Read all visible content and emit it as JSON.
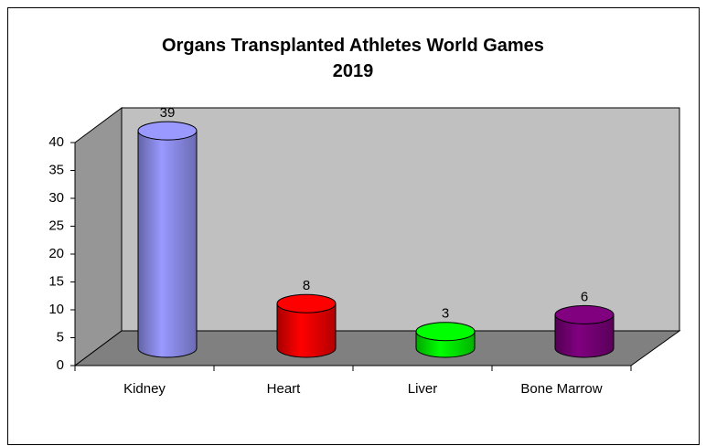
{
  "chart_data": {
    "type": "bar3d",
    "title": "Organs Transplanted Athletes World Games 2019",
    "categories": [
      "Kidney",
      "Heart",
      "Liver",
      "Bone Marrow"
    ],
    "values": [
      39,
      8,
      3,
      6
    ],
    "colors": [
      "#9999ff",
      "#ff0000",
      "#00ff00",
      "#800080"
    ],
    "ylim": [
      0,
      40
    ],
    "yticks": [
      0,
      5,
      10,
      15,
      20,
      25,
      30,
      35,
      40
    ]
  }
}
